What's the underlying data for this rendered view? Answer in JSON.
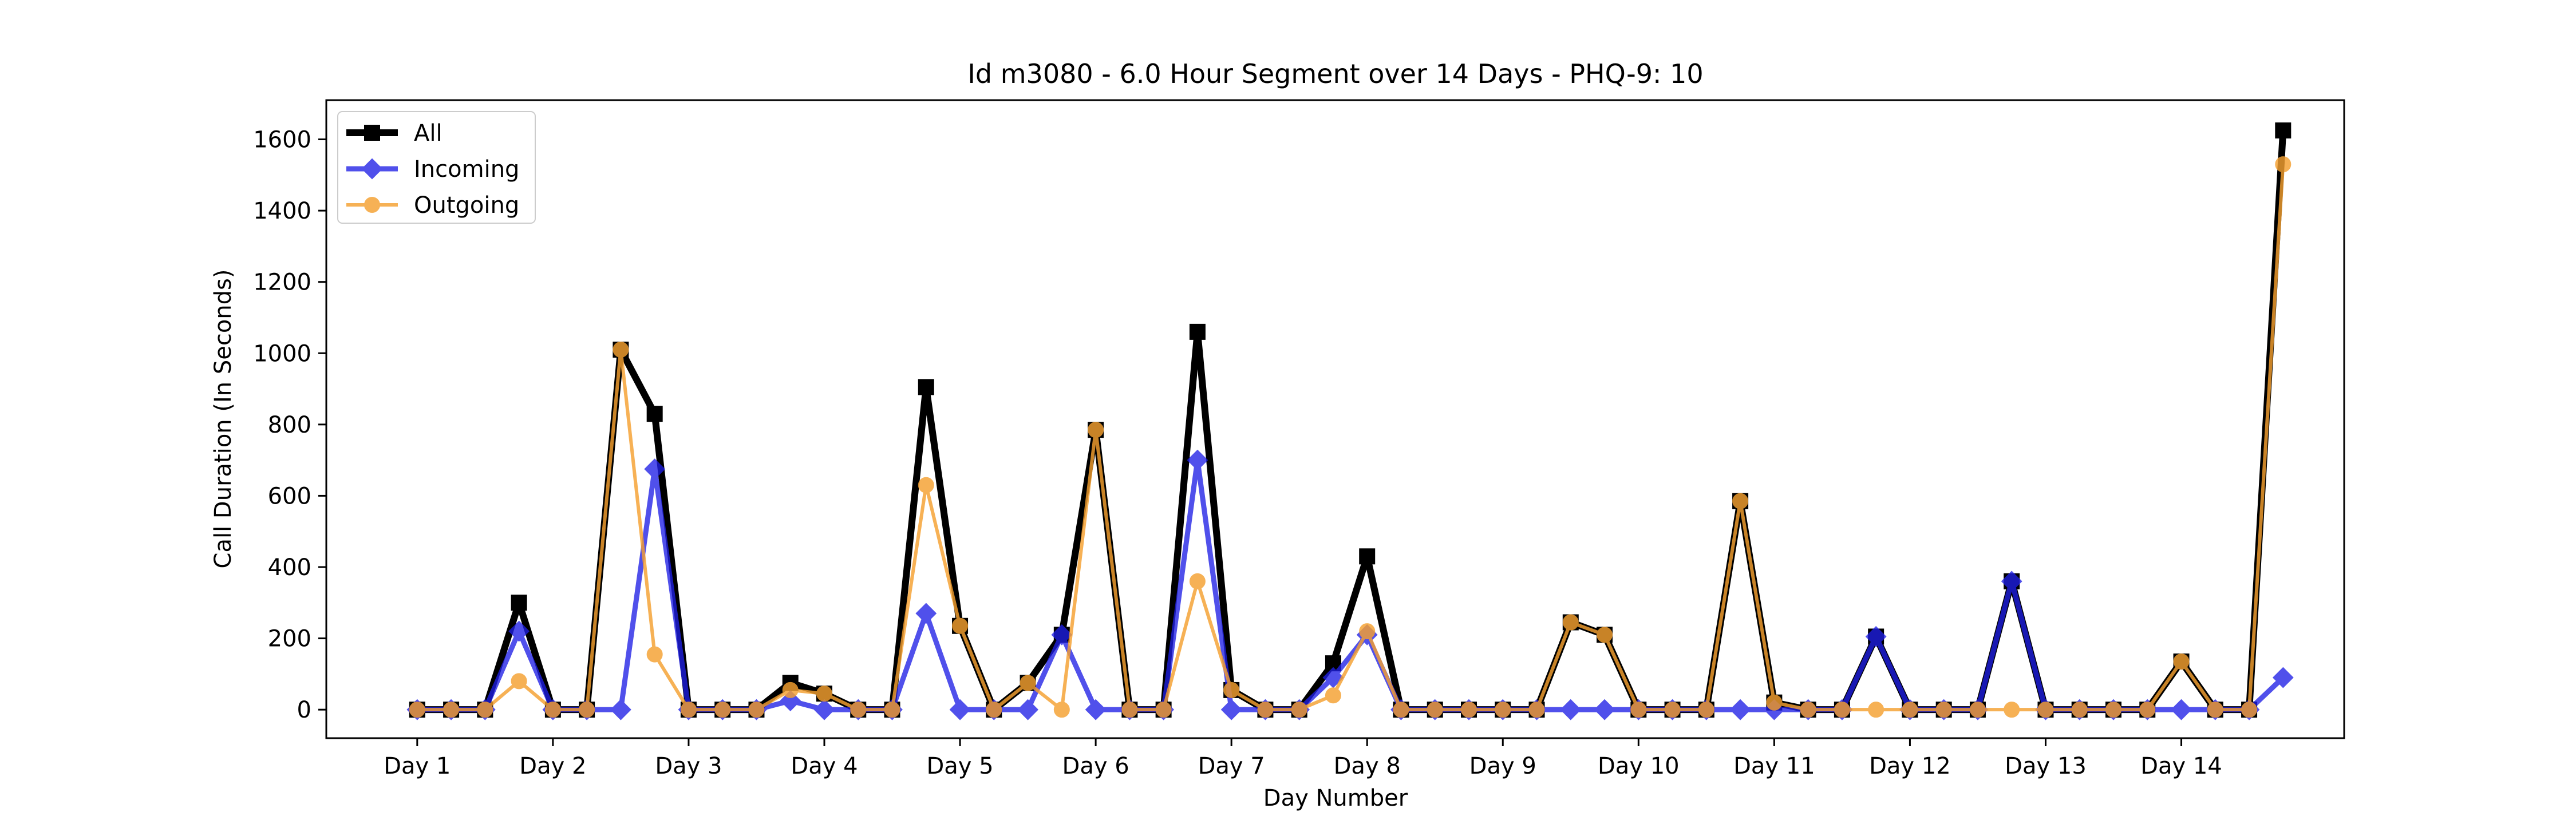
{
  "chart_data": {
    "type": "line",
    "title": "Id m3080 - 6.0 Hour Segment over 14 Days - PHQ-9: 10",
    "xlabel": "Day Number",
    "ylabel": "Call Duration (In Seconds)",
    "x": [
      1,
      1.25,
      1.5,
      1.75,
      2,
      2.25,
      2.5,
      2.75,
      3,
      3.25,
      3.5,
      3.75,
      4,
      4.25,
      4.5,
      4.75,
      5,
      5.25,
      5.5,
      5.75,
      6,
      6.25,
      6.5,
      6.75,
      7,
      7.25,
      7.5,
      7.75,
      8,
      8.25,
      8.5,
      8.75,
      9,
      9.25,
      9.5,
      9.75,
      10,
      10.25,
      10.5,
      10.75,
      11,
      11.25,
      11.5,
      11.75,
      12,
      12.25,
      12.5,
      12.75,
      13,
      13.25,
      13.5,
      13.75,
      14,
      14.25,
      14.5,
      14.75
    ],
    "xticks": [
      1,
      2,
      3,
      4,
      5,
      6,
      7,
      8,
      9,
      10,
      11,
      12,
      13,
      14
    ],
    "xtick_labels": [
      "Day 1",
      "Day 2",
      "Day 3",
      "Day 4",
      "Day 5",
      "Day 6",
      "Day 7",
      "Day 8",
      "Day 9",
      "Day 10",
      "Day 11",
      "Day 12",
      "Day 13",
      "Day 14"
    ],
    "xlim": [
      0.33,
      15.2
    ],
    "ylim": [
      -80,
      1710
    ],
    "yticks": [
      0,
      200,
      400,
      600,
      800,
      1000,
      1200,
      1400,
      1600
    ],
    "legend_position": "upper-left",
    "grid": false,
    "series": [
      {
        "name": "All",
        "color": "#000000",
        "marker": "square",
        "values": [
          0,
          0,
          0,
          300,
          0,
          0,
          1010,
          830,
          0,
          0,
          0,
          75,
          45,
          0,
          0,
          905,
          235,
          0,
          75,
          210,
          785,
          0,
          0,
          1060,
          55,
          0,
          0,
          130,
          430,
          0,
          0,
          0,
          0,
          0,
          245,
          210,
          0,
          0,
          0,
          585,
          20,
          0,
          0,
          205,
          0,
          0,
          0,
          360,
          0,
          0,
          0,
          0,
          135,
          0,
          0,
          1625
        ]
      },
      {
        "name": "Incoming",
        "color": "#1f1fe6",
        "marker": "diamond",
        "values": [
          0,
          0,
          0,
          220,
          0,
          0,
          0,
          675,
          0,
          0,
          0,
          25,
          0,
          0,
          0,
          270,
          0,
          0,
          0,
          210,
          0,
          0,
          0,
          700,
          0,
          0,
          0,
          90,
          210,
          0,
          0,
          0,
          0,
          0,
          0,
          0,
          0,
          0,
          0,
          0,
          0,
          0,
          0,
          205,
          0,
          0,
          0,
          360,
          0,
          0,
          0,
          0,
          0,
          0,
          0,
          90
        ]
      },
      {
        "name": "Outgoing",
        "color": "#f5a030",
        "marker": "circle",
        "values": [
          0,
          0,
          0,
          80,
          0,
          0,
          1010,
          155,
          0,
          0,
          0,
          55,
          45,
          0,
          0,
          630,
          235,
          0,
          75,
          0,
          785,
          0,
          0,
          360,
          55,
          0,
          0,
          40,
          220,
          0,
          0,
          0,
          0,
          0,
          245,
          210,
          0,
          0,
          0,
          585,
          20,
          0,
          0,
          0,
          0,
          0,
          0,
          0,
          0,
          0,
          0,
          0,
          135,
          0,
          0,
          1530
        ]
      }
    ]
  }
}
